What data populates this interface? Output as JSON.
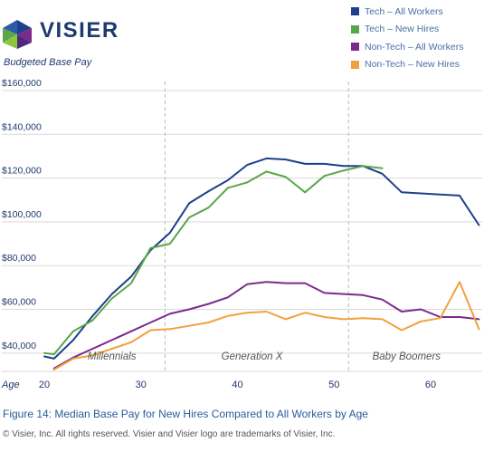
{
  "header": {
    "logo_text": "VISIER",
    "subtitle": "Budgeted Base Pay"
  },
  "caption": "Figure 14: Median Base Pay for New Hires Compared to All Workers by Age",
  "copyright": "© Visier, Inc. All rights reserved. Visier and Visier logo are trademarks of Visier, Inc.",
  "colors": {
    "tech_all": "#1e3f8c",
    "tech_new": "#5aa64b",
    "nontech_all": "#7b2a8c",
    "nontech_new": "#f2a03d",
    "grid": "#d9d9d9",
    "axis_text": "#1e3a6e",
    "generation_text": "#555555"
  },
  "chart_data": {
    "type": "line",
    "xlabel": "Age",
    "ylabel": "",
    "xlim": [
      19,
      66
    ],
    "ylim": [
      30000,
      162000
    ],
    "x_ticks": [
      20,
      30,
      40,
      50,
      60
    ],
    "y_ticks": [
      40000,
      60000,
      80000,
      100000,
      120000,
      140000,
      160000
    ],
    "y_tick_labels": [
      "$40,000",
      "$60,000",
      "$80,000",
      "$100,000",
      "$120,000",
      "$140,000",
      "$160,000"
    ],
    "grid": true,
    "legend_position": "top-right",
    "generation_dividers": [
      32.5,
      51.5
    ],
    "generations": [
      {
        "label": "Millennials",
        "x": 27
      },
      {
        "label": "Generation X",
        "x": 41.5
      },
      {
        "label": "Baby Boomers",
        "x": 57.5
      }
    ],
    "series": [
      {
        "name": "Tech – All Workers",
        "color_key": "tech_all",
        "x": [
          20,
          21,
          23,
          25,
          27,
          29,
          31,
          33,
          35,
          37,
          39,
          41,
          43,
          45,
          47,
          49,
          51,
          53,
          55,
          57,
          59,
          61,
          63,
          65
        ],
        "values": [
          38500,
          37500,
          46000,
          57000,
          67000,
          75000,
          87000,
          95000,
          108500,
          114000,
          119000,
          126000,
          129000,
          128500,
          126500,
          126500,
          125500,
          125500,
          122000,
          113500,
          113000,
          112500,
          112000,
          98500
        ]
      },
      {
        "name": "Tech – New Hires",
        "color_key": "tech_new",
        "x": [
          20,
          21,
          23,
          25,
          27,
          29,
          31,
          33,
          35,
          37,
          39,
          41,
          43,
          45,
          47,
          49,
          51,
          53,
          55
        ],
        "values": [
          40000,
          39500,
          50000,
          55000,
          65000,
          72000,
          88000,
          90000,
          102000,
          106500,
          115500,
          118000,
          123000,
          120500,
          113500,
          121000,
          123500,
          125500,
          124500
        ]
      },
      {
        "name": "Non-Tech – All Workers",
        "color_key": "nontech_all",
        "x": [
          21,
          23,
          25,
          27,
          29,
          31,
          33,
          35,
          37,
          39,
          41,
          43,
          45,
          47,
          49,
          51,
          53,
          55,
          57,
          59,
          61,
          63,
          65
        ],
        "values": [
          33000,
          38000,
          42000,
          46000,
          50000,
          54000,
          58000,
          60000,
          62500,
          65500,
          71500,
          72500,
          72000,
          72000,
          67500,
          67000,
          66500,
          64500,
          59000,
          60000,
          56500,
          56500,
          55500
        ]
      },
      {
        "name": "Non-Tech – New Hires",
        "color_key": "nontech_new",
        "x": [
          21,
          23,
          25,
          27,
          29,
          31,
          33,
          35,
          37,
          39,
          41,
          43,
          45,
          47,
          49,
          51,
          53,
          55,
          57,
          59,
          61,
          63,
          65
        ],
        "values": [
          32500,
          37500,
          39000,
          42000,
          45000,
          50500,
          51000,
          52500,
          54000,
          57000,
          58500,
          59000,
          55500,
          58500,
          56500,
          55500,
          56000,
          55500,
          50500,
          54500,
          56000,
          72500,
          51000
        ]
      }
    ]
  }
}
